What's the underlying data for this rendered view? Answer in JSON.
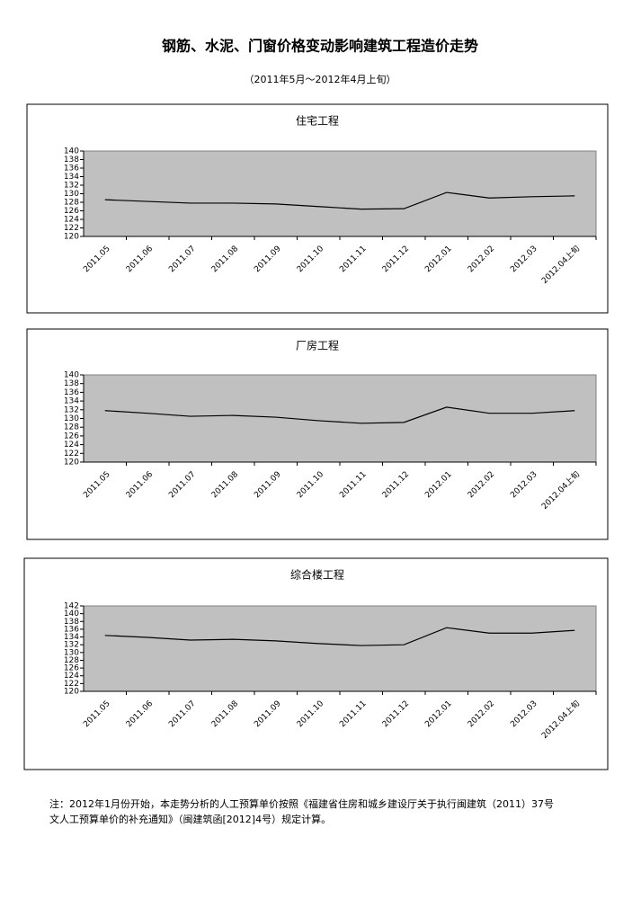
{
  "title": "钢筋、水泥、门窗价格变动影响建筑工程造价走势",
  "subtitle": "（2011年5月～2012年4月上旬）",
  "chart_data": [
    {
      "type": "line",
      "title": "住宅工程",
      "categories": [
        "2011.05",
        "2011.06",
        "2011.07",
        "2011.08",
        "2011.09",
        "2011.10",
        "2011.11",
        "2011.12",
        "2012.01",
        "2012.02",
        "2012.03",
        "2012.04上旬"
      ],
      "values": [
        128.6,
        128.2,
        127.8,
        127.8,
        127.6,
        127.0,
        126.4,
        126.5,
        130.3,
        129.0,
        129.3,
        129.5
      ],
      "color": "#000000",
      "plot_background": "#c0c0c0",
      "ylim": [
        120,
        140
      ],
      "yticks": [
        120,
        122,
        124,
        126,
        128,
        130,
        132,
        134,
        136,
        138,
        140
      ]
    },
    {
      "type": "line",
      "title": "厂房工程",
      "categories": [
        "2011.05",
        "2011.06",
        "2011.07",
        "2011.08",
        "2011.09",
        "2011.10",
        "2011.11",
        "2011.12",
        "2012.01",
        "2012.02",
        "2012.03",
        "2012.04上旬"
      ],
      "values": [
        131.8,
        131.2,
        130.5,
        130.7,
        130.3,
        129.5,
        128.9,
        129.1,
        132.6,
        131.2,
        131.2,
        131.8
      ],
      "color": "#000000",
      "plot_background": "#c0c0c0",
      "ylim": [
        120,
        140
      ],
      "yticks": [
        120,
        122,
        124,
        126,
        128,
        130,
        132,
        134,
        136,
        138,
        140
      ]
    },
    {
      "type": "line",
      "title": "综合楼工程",
      "categories": [
        "2011.05",
        "2011.06",
        "2011.07",
        "2011.08",
        "2011.09",
        "2011.10",
        "2011.11",
        "2011.12",
        "2012.01",
        "2012.02",
        "2012.03",
        "2012.04上旬"
      ],
      "values": [
        134.4,
        133.9,
        133.2,
        133.4,
        133.0,
        132.3,
        131.8,
        132.0,
        136.4,
        135.0,
        135.0,
        135.7
      ],
      "color": "#000000",
      "plot_background": "#c0c0c0",
      "ylim": [
        120,
        142
      ],
      "yticks": [
        120,
        122,
        124,
        126,
        128,
        130,
        132,
        134,
        136,
        138,
        140,
        142
      ]
    }
  ],
  "note": [
    "注：2012年1月份开始，本走势分析的人工预算单价按照《福建省住房和城乡建设厅关于执行闽建筑（2011）37号",
    "文人工预算单价的补充通知》（闽建筑函[2012]4号）规定计算。"
  ]
}
